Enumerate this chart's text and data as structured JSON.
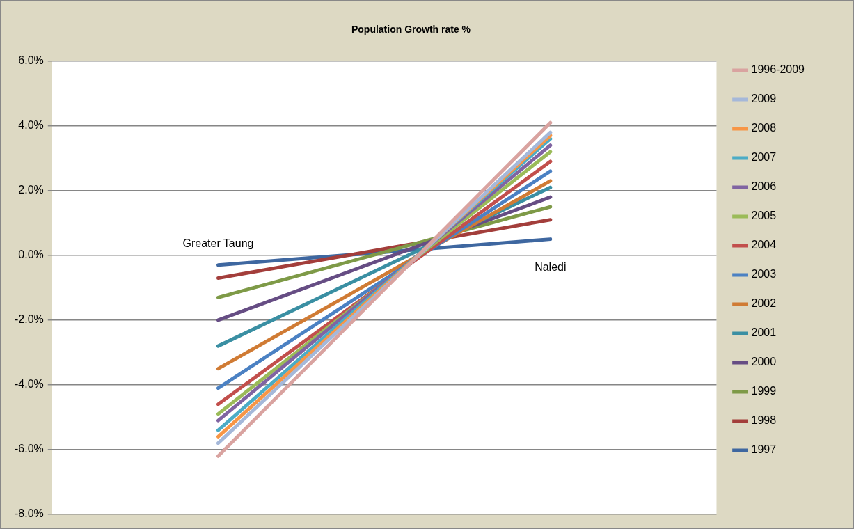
{
  "chart_data": {
    "type": "line",
    "title": "Population Growth rate %",
    "categories": [
      "Greater Taung",
      "Naledi"
    ],
    "ylim": [
      -8,
      6
    ],
    "yticks": [
      {
        "value": -8,
        "label": "-8.0%"
      },
      {
        "value": -6,
        "label": "-6.0%"
      },
      {
        "value": -4,
        "label": "-4.0%"
      },
      {
        "value": -2,
        "label": "-2.0%"
      },
      {
        "value": 0,
        "label": "0.0%"
      },
      {
        "value": 2,
        "label": "2.0%"
      },
      {
        "value": 4,
        "label": "4.0%"
      },
      {
        "value": 6,
        "label": "6.0%"
      }
    ],
    "grid": "y",
    "legend": "right",
    "marker": "none",
    "line_style": "solid",
    "series": [
      {
        "name": "1996-2009",
        "color": "#d9a3a0",
        "values": [
          -6.2,
          4.1
        ]
      },
      {
        "name": "2009",
        "color": "#a5b8d9",
        "values": [
          -5.8,
          3.8
        ]
      },
      {
        "name": "2008",
        "color": "#f79646",
        "values": [
          -5.6,
          3.7
        ]
      },
      {
        "name": "2007",
        "color": "#4bacc6",
        "values": [
          -5.4,
          3.6
        ]
      },
      {
        "name": "2006",
        "color": "#8064a2",
        "values": [
          -5.1,
          3.4
        ]
      },
      {
        "name": "2005",
        "color": "#9bbb59",
        "values": [
          -4.9,
          3.2
        ]
      },
      {
        "name": "2004",
        "color": "#c24f4c",
        "values": [
          -4.6,
          2.9
        ]
      },
      {
        "name": "2003",
        "color": "#4b81c3",
        "values": [
          -4.1,
          2.6
        ]
      },
      {
        "name": "2002",
        "color": "#d07b34",
        "values": [
          -3.5,
          2.3
        ]
      },
      {
        "name": "2001",
        "color": "#3a8fa3",
        "values": [
          -2.8,
          2.1
        ]
      },
      {
        "name": "2000",
        "color": "#664d84",
        "values": [
          -2.0,
          1.8
        ]
      },
      {
        "name": "1999",
        "color": "#7e9a47",
        "values": [
          -1.3,
          1.5
        ]
      },
      {
        "name": "1998",
        "color": "#a33e3b",
        "values": [
          -0.7,
          1.1
        ]
      },
      {
        "name": "1997",
        "color": "#3e67a0",
        "values": [
          -0.3,
          0.5
        ]
      }
    ]
  }
}
